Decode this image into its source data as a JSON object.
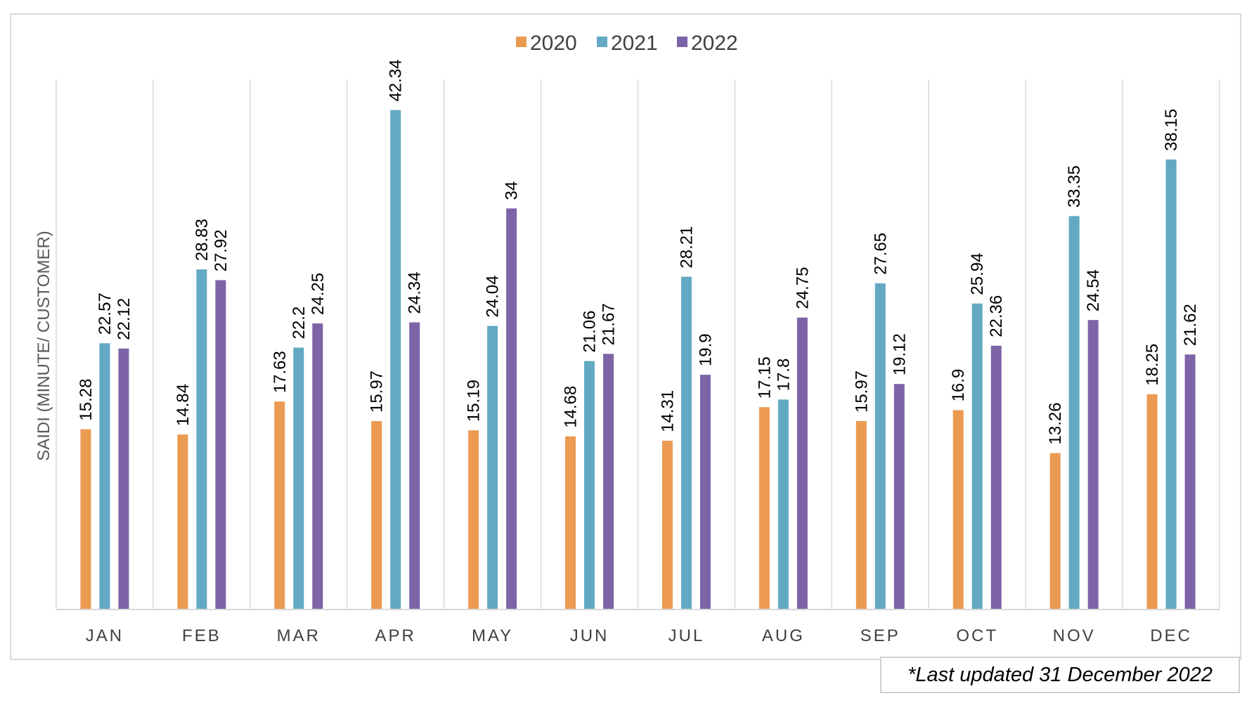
{
  "chart_data": {
    "type": "bar",
    "title": "",
    "xlabel": "",
    "ylabel": "SAIDI (MINUTE/ CUSTOMER)",
    "ylim": [
      0,
      50
    ],
    "grid": "vertical category separators",
    "legend_position": "top-center",
    "categories": [
      "JAN",
      "FEB",
      "MAR",
      "APR",
      "MAY",
      "JUN",
      "JUL",
      "AUG",
      "SEP",
      "OCT",
      "NOV",
      "DEC"
    ],
    "series": [
      {
        "name": "2020",
        "color": "#eb9a52",
        "values": [
          15.28,
          14.84,
          17.63,
          15.97,
          15.19,
          14.68,
          14.31,
          17.15,
          15.97,
          16.9,
          13.26,
          18.25
        ],
        "labels": [
          "15.28",
          "14.84",
          "17.63",
          "15.97",
          "15.19",
          "14.68",
          "14.31",
          "17.15",
          "15.97",
          "16.9",
          "13.26",
          "18.25"
        ]
      },
      {
        "name": "2021",
        "color": "#63a9c3",
        "values": [
          22.57,
          28.83,
          22.2,
          42.34,
          24.04,
          21.06,
          28.21,
          17.8,
          27.65,
          25.94,
          33.35,
          38.15
        ],
        "labels": [
          "22.57",
          "28.83",
          "22.2",
          "42.34",
          "24.04",
          "21.06",
          "28.21",
          "17.8",
          "27.65",
          "25.94",
          "33.35",
          "38.15"
        ]
      },
      {
        "name": "2022",
        "color": "#7d64a7",
        "values": [
          22.12,
          27.92,
          24.25,
          24.34,
          34,
          21.67,
          19.9,
          24.75,
          19.12,
          22.36,
          24.54,
          21.62
        ],
        "labels": [
          "22.12",
          "27.92",
          "24.25",
          "24.34",
          "34",
          "21.67",
          "19.9",
          "24.75",
          "19.12",
          "22.36",
          "24.54",
          "21.62"
        ]
      }
    ]
  },
  "footnote": "*Last updated 31 December 2022"
}
